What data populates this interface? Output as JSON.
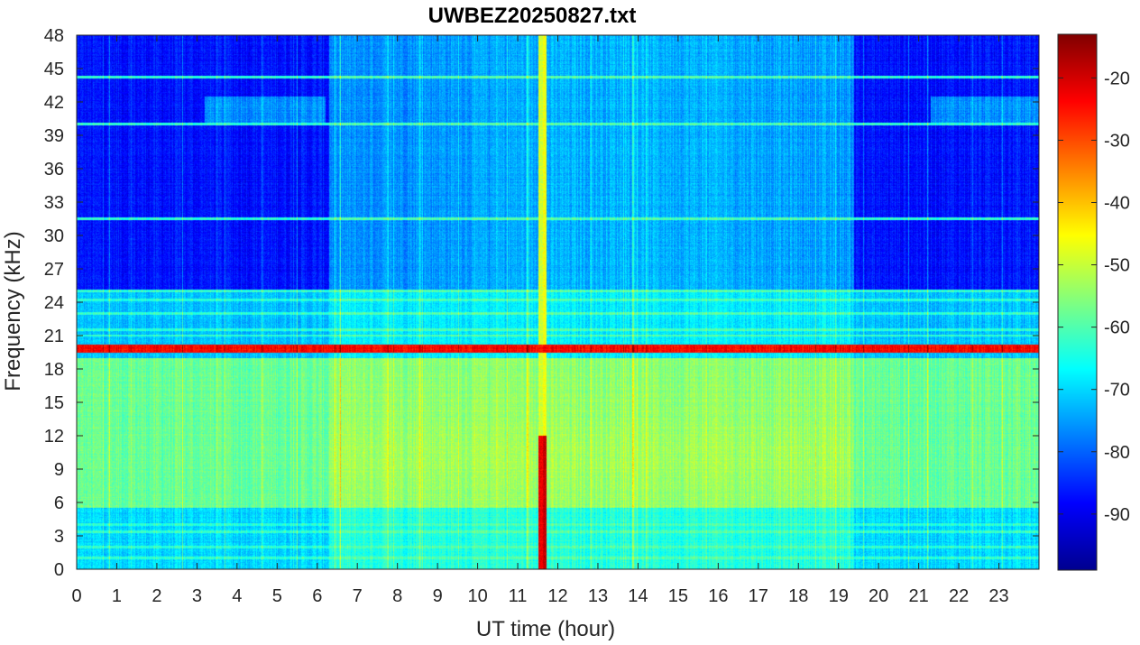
{
  "chart_data": {
    "type": "heatmap",
    "title": "UWBEZ20250827.txt",
    "xlabel": "UT time (hour)",
    "ylabel": "Frequency (kHz)",
    "xlim": [
      0,
      24
    ],
    "ylim": [
      0,
      48
    ],
    "xticks": [
      0,
      1,
      2,
      3,
      4,
      5,
      6,
      7,
      8,
      9,
      10,
      11,
      12,
      13,
      14,
      15,
      16,
      17,
      18,
      19,
      20,
      21,
      22,
      23
    ],
    "yticks": [
      0,
      3,
      6,
      9,
      12,
      15,
      18,
      21,
      24,
      27,
      30,
      33,
      36,
      39,
      42,
      45,
      48
    ],
    "colorbar": {
      "colormap": "jet",
      "clim": [
        -99,
        -13
      ],
      "ticks": [
        -90,
        -80,
        -70,
        -60,
        -50,
        -40,
        -30,
        -20
      ]
    },
    "features": {
      "transmitter_line_khz": 19.8,
      "transmitter_level_db": -24,
      "burst_time_hour": 11.62,
      "burst_peak_level_db": -20,
      "quiet_night_intervals_hour": [
        [
          0,
          6.3
        ],
        [
          19.4,
          24
        ]
      ],
      "high_band_quiet_level_db": -90,
      "low_band_day_level_db": -55
    }
  }
}
